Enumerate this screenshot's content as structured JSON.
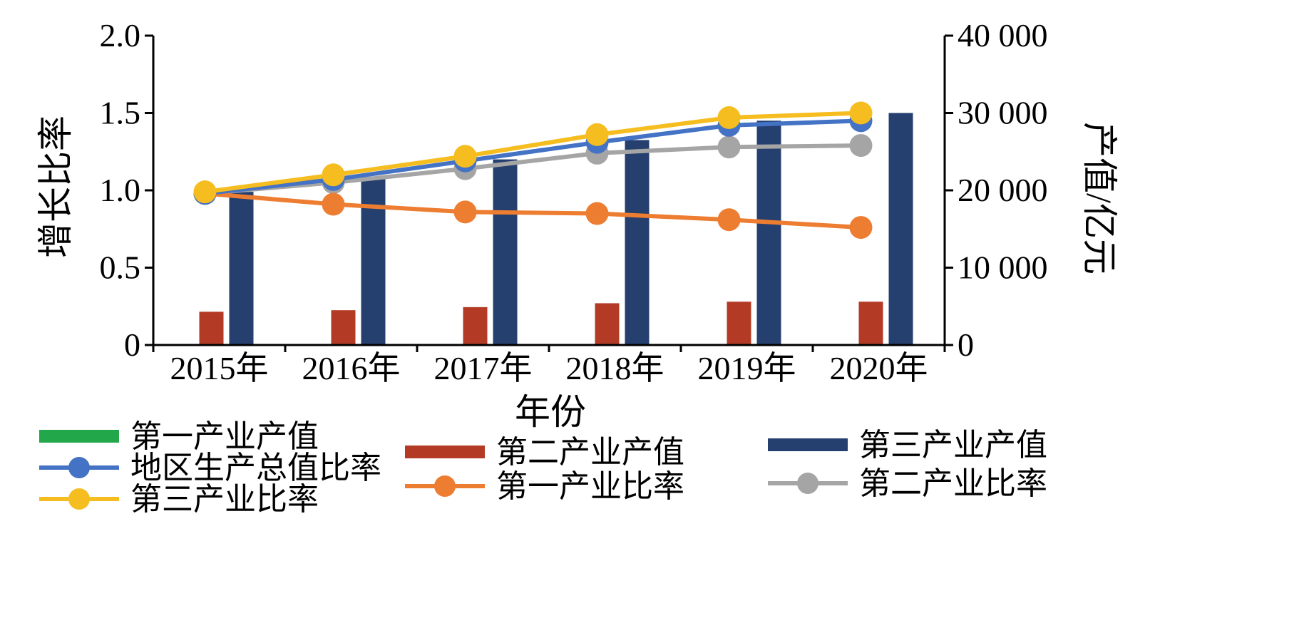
{
  "chart_data": {
    "type": "bar",
    "xlabel": "年份",
    "ylabel": "增长比率",
    "ylabel_right": "产值/亿元",
    "categories": [
      "2015年",
      "2016年",
      "2017年",
      "2018年",
      "2019年",
      "2020年"
    ],
    "ylim": [
      0,
      2.0
    ],
    "ylim_right": [
      0,
      40000
    ],
    "yticks": [
      "0",
      "0.5",
      "1.0",
      "1.5",
      "2.0"
    ],
    "yticks_right": [
      "0",
      "10 000",
      "20 000",
      "30 000",
      "40 000"
    ],
    "bar_series": [
      {
        "name": "第一产业产值",
        "color": "#22a74a",
        "axis": "right",
        "values": [
          0,
          0,
          0,
          0,
          0,
          0
        ]
      },
      {
        "name": "第二产业产值",
        "color": "#b33b25",
        "axis": "right",
        "values": [
          4300,
          4500,
          4900,
          5400,
          5600,
          5600
        ]
      },
      {
        "name": "第三产业产值",
        "color": "#253f6e",
        "axis": "right",
        "values": [
          19800,
          21700,
          24000,
          26500,
          29000,
          30000
        ]
      }
    ],
    "line_series": [
      {
        "name": "地区生产总值比率",
        "color": "#4472c4",
        "axis": "left",
        "values": [
          0.98,
          1.07,
          1.19,
          1.31,
          1.42,
          1.45
        ]
      },
      {
        "name": "第一产业比率",
        "color": "#ed7d31",
        "axis": "left",
        "values": [
          0.98,
          0.91,
          0.86,
          0.85,
          0.81,
          0.76
        ]
      },
      {
        "name": "第二产业比率",
        "color": "#a5a5a5",
        "axis": "left",
        "values": [
          0.98,
          1.05,
          1.14,
          1.24,
          1.28,
          1.29
        ]
      },
      {
        "name": "第三产业比率",
        "color": "#f5bd1f",
        "axis": "left",
        "values": [
          0.99,
          1.1,
          1.22,
          1.36,
          1.47,
          1.5
        ]
      }
    ],
    "legend": [
      {
        "label": "第一产业产值",
        "kind": "bar",
        "color": "#22a74a"
      },
      {
        "label": "地区生产总值比率",
        "kind": "line",
        "color": "#4472c4"
      },
      {
        "label": "第三产业比率",
        "kind": "line",
        "color": "#f5bd1f"
      },
      {
        "label": "第二产业产值",
        "kind": "bar",
        "color": "#b33b25"
      },
      {
        "label": "第一产业比率",
        "kind": "line",
        "color": "#ed7d31"
      },
      {
        "label": "第三产业产值",
        "kind": "bar",
        "color": "#253f6e"
      },
      {
        "label": "第二产业比率",
        "kind": "line",
        "color": "#a5a5a5"
      }
    ],
    "legend_placement": "bottom",
    "grid": false
  }
}
